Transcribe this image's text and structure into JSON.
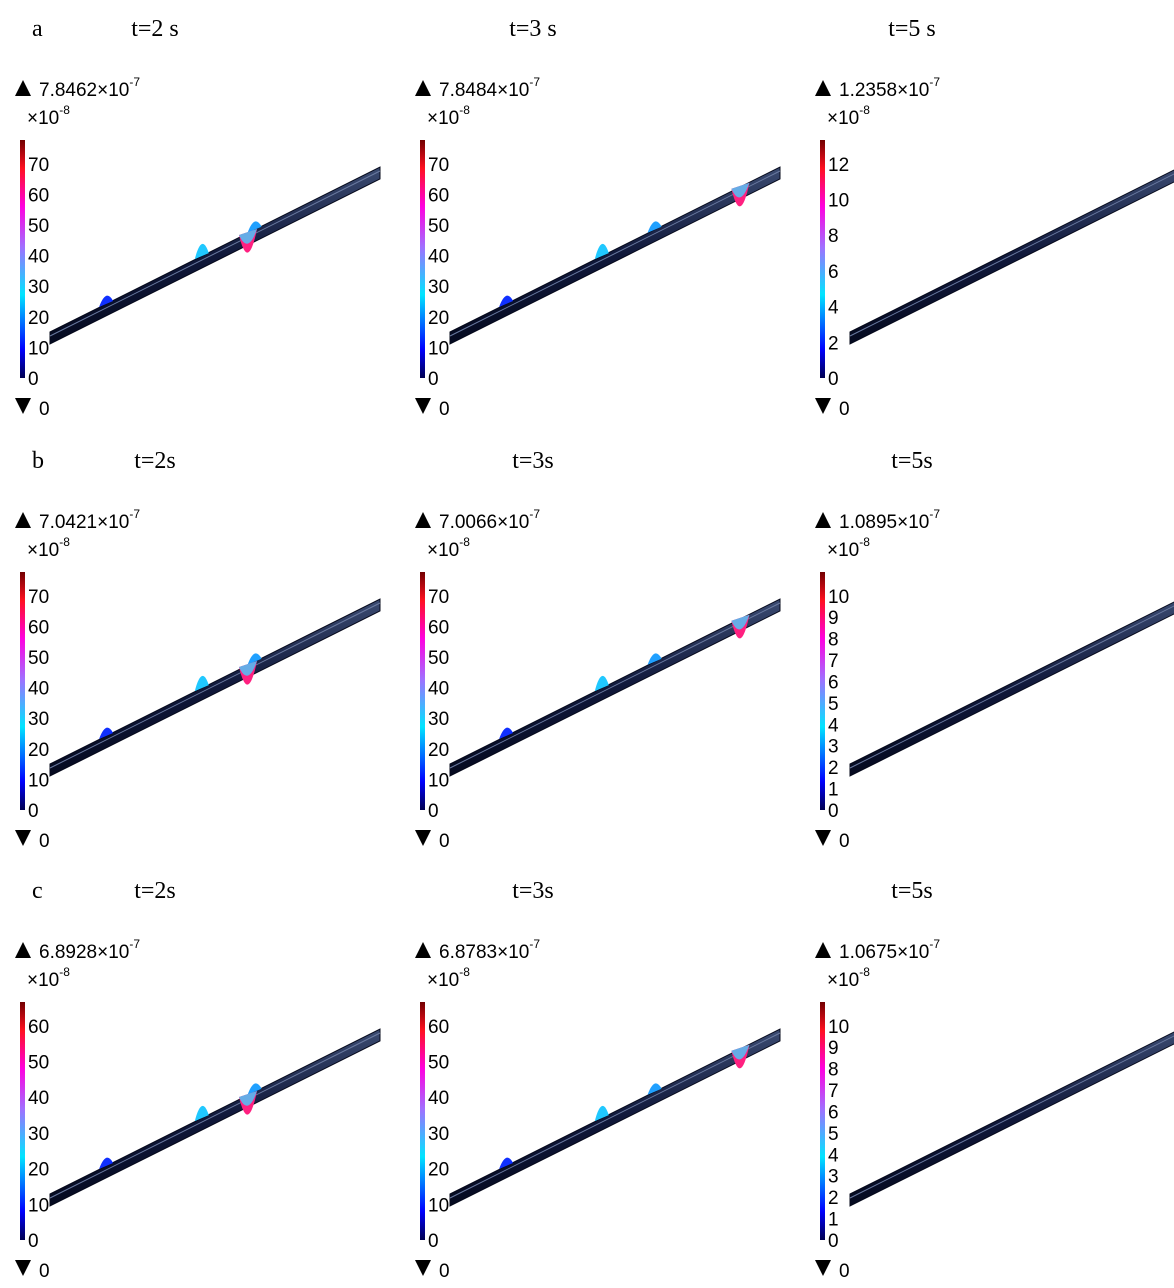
{
  "rows": [
    {
      "label": "a",
      "panels": [
        {
          "time": "t=2 s",
          "max": {
            "mantissa": "7.8462×10",
            "exponent": "-7"
          },
          "scale": {
            "base": "×10",
            "exponent": "-8"
          },
          "ticks": [
            "70",
            "60",
            "50",
            "40",
            "30",
            "20",
            "10",
            "0"
          ],
          "min": "0"
        },
        {
          "time": "t=3 s",
          "max": {
            "mantissa": "7.8484×10",
            "exponent": "-7"
          },
          "scale": {
            "base": "×10",
            "exponent": "-8"
          },
          "ticks": [
            "70",
            "60",
            "50",
            "40",
            "30",
            "20",
            "10",
            "0"
          ],
          "min": "0"
        },
        {
          "time": "t=5 s",
          "max": {
            "mantissa": "1.2358×10",
            "exponent": "-7"
          },
          "scale": {
            "base": "×10",
            "exponent": "-8"
          },
          "ticks": [
            "12",
            "10",
            "8",
            "6",
            "4",
            "2",
            "0"
          ],
          "min": "0"
        }
      ]
    },
    {
      "label": "b",
      "panels": [
        {
          "time": "t=2s",
          "max": {
            "mantissa": "7.0421×10",
            "exponent": "-7"
          },
          "scale": {
            "base": "×10",
            "exponent": "-8"
          },
          "ticks": [
            "70",
            "60",
            "50",
            "40",
            "30",
            "20",
            "10",
            "0"
          ],
          "min": "0"
        },
        {
          "time": "t=3s",
          "max": {
            "mantissa": "7.0066×10",
            "exponent": "-7"
          },
          "scale": {
            "base": "×10",
            "exponent": "-8"
          },
          "ticks": [
            "70",
            "60",
            "50",
            "40",
            "30",
            "20",
            "10",
            "0"
          ],
          "min": "0"
        },
        {
          "time": "t=5s",
          "max": {
            "mantissa": "1.0895×10",
            "exponent": "-7"
          },
          "scale": {
            "base": "×10",
            "exponent": "-8"
          },
          "ticks": [
            "10",
            "9",
            "8",
            "7",
            "6",
            "5",
            "4",
            "3",
            "2",
            "1",
            "0"
          ],
          "min": "0"
        }
      ]
    },
    {
      "label": "c",
      "panels": [
        {
          "time": "t=2s",
          "max": {
            "mantissa": "6.8928×10",
            "exponent": "-7"
          },
          "scale": {
            "base": "×10",
            "exponent": "-8"
          },
          "ticks": [
            "60",
            "50",
            "40",
            "30",
            "20",
            "10",
            "0"
          ],
          "min": "0"
        },
        {
          "time": "t=3s",
          "max": {
            "mantissa": "6.8783×10",
            "exponent": "-7"
          },
          "scale": {
            "base": "×10",
            "exponent": "-8"
          },
          "ticks": [
            "60",
            "50",
            "40",
            "30",
            "20",
            "10",
            "0"
          ],
          "min": "0"
        },
        {
          "time": "t=5s",
          "max": {
            "mantissa": "1.0675×10",
            "exponent": "-7"
          },
          "scale": {
            "base": "×10",
            "exponent": "-8"
          },
          "ticks": [
            "10",
            "9",
            "8",
            "7",
            "6",
            "5",
            "4",
            "3",
            "2",
            "1",
            "0"
          ],
          "min": "0"
        }
      ]
    }
  ]
}
